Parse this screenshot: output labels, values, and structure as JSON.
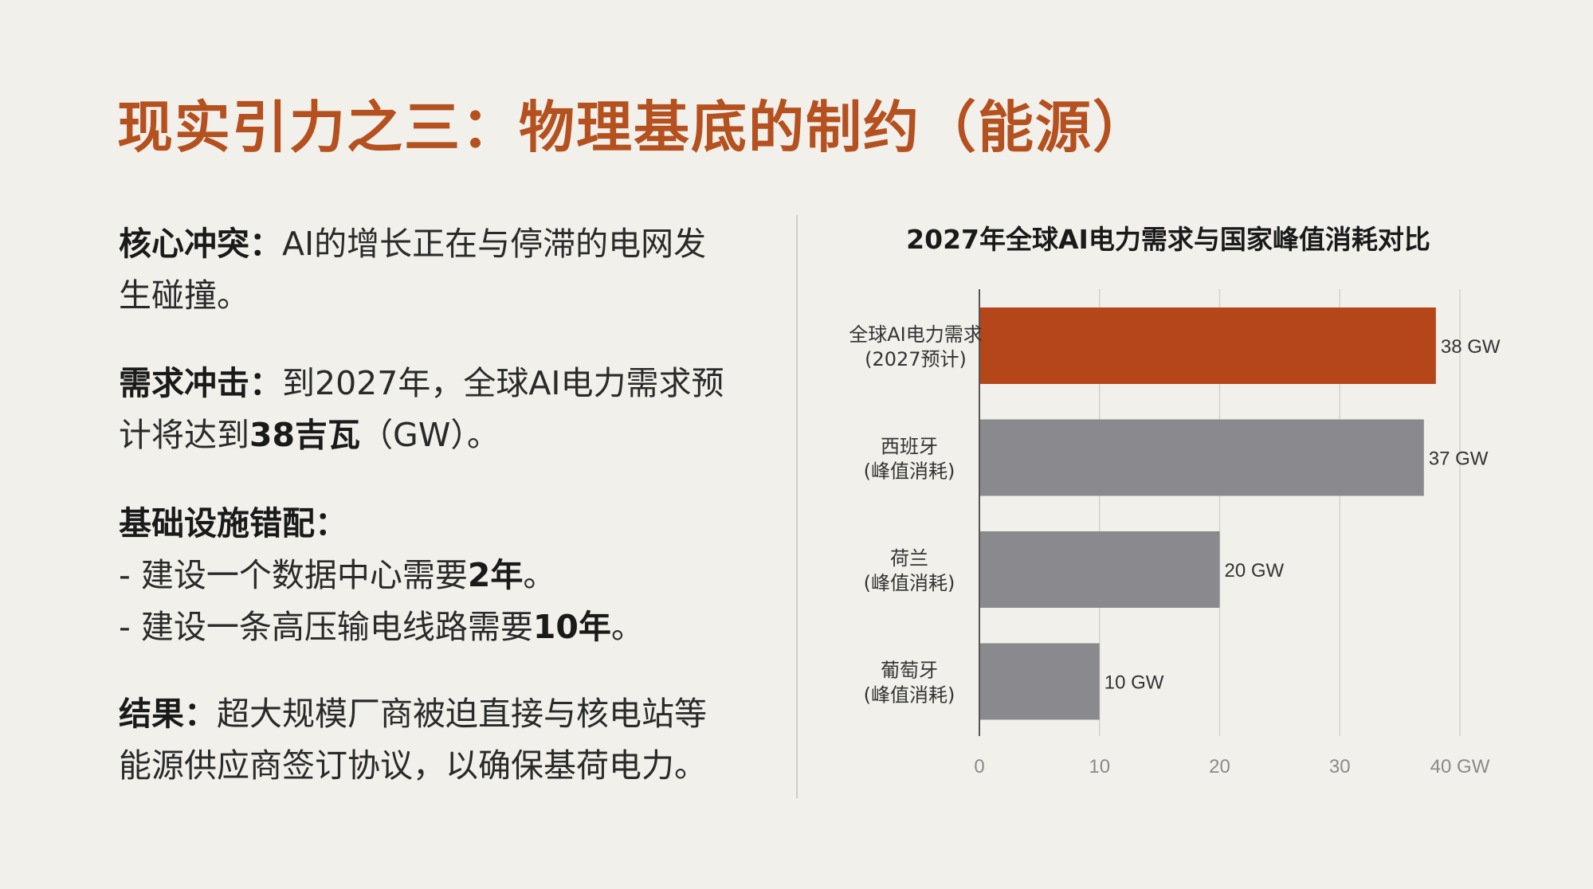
{
  "title": "现实引力之三：物理基底的制约（能源）",
  "points": [
    {
      "label": "核心冲突：",
      "lines": [
        "AI的增长正在与停滞的电网发",
        "生碰撞。"
      ]
    },
    {
      "label": "需求冲击：",
      "line1": "到2027年，全球AI电力需求预",
      "line2_pre": "计将达到",
      "line2_bold": "38吉瓦",
      "line2_post": "（GW）。"
    },
    {
      "label": "基础设施错配：",
      "item1_pre": "- 建设一个数据中心需要",
      "item1_bold": "2年",
      "item1_post": "。",
      "item2_pre": "- 建设一条高压输电线路需要",
      "item2_bold": "10年",
      "item2_post": "。"
    },
    {
      "label": "结果：",
      "lines": [
        "超大规模厂商被迫直接与核电站等",
        "能源供应商签订协议，以确保基荷电力。"
      ]
    }
  ],
  "chart_data": {
    "type": "bar",
    "orientation": "horizontal",
    "title": "2027年全球AI电力需求与国家峰值消耗对比",
    "categories": [
      [
        "全球AI电力需求",
        "(2027预计)"
      ],
      [
        "西班牙",
        "(峰值消耗)"
      ],
      [
        "荷兰",
        "(峰值消耗)"
      ],
      [
        "葡萄牙",
        "(峰值消耗)"
      ]
    ],
    "values": [
      38,
      37,
      20,
      10
    ],
    "value_labels": [
      "38 GW",
      "37 GW",
      "20 GW",
      "10 GW"
    ],
    "colors": [
      "#b5461a",
      "#8a8a8e",
      "#8a8a8e",
      "#8a8a8e"
    ],
    "xlim": [
      0,
      40
    ],
    "xticks": [
      0,
      10,
      20,
      30,
      40
    ],
    "xtick_labels": [
      "0",
      "10",
      "20",
      "30",
      "40 GW"
    ],
    "grid": true
  }
}
